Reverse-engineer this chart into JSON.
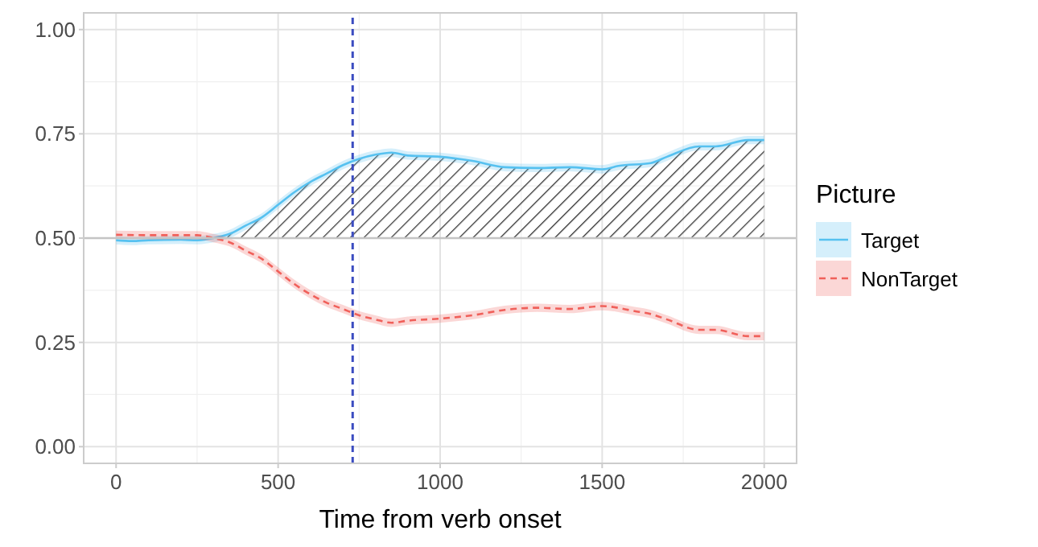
{
  "chart_data": {
    "type": "line",
    "xlabel": "Time from verb onset",
    "legend_title": "Picture",
    "xlim": [
      -100,
      2100
    ],
    "ylim": [
      -0.04,
      1.04
    ],
    "xticks": [
      0,
      500,
      1000,
      1500,
      2000
    ],
    "yticks": [
      {
        "value": 0,
        "label": "0.00"
      },
      {
        "value": 0.25,
        "label": "0.25"
      },
      {
        "value": 0.5,
        "label": "0.50"
      },
      {
        "value": 0.75,
        "label": "0.75"
      },
      {
        "value": 1,
        "label": "1.00"
      }
    ],
    "grid": true,
    "legend": "right",
    "ref_lines": [
      {
        "axis": "x",
        "value": 730,
        "color": "#3b4cc0",
        "line_style": "dashed"
      },
      {
        "axis": "y",
        "value": 0.5,
        "color": "#c4c4c4",
        "line_style": "solid"
      }
    ],
    "series": [
      {
        "type": "area",
        "color": "#333333",
        "x": [
          330,
          350,
          400,
          450,
          500,
          550,
          600,
          650,
          700,
          750,
          800,
          850,
          900,
          1000,
          1100,
          1200,
          1300,
          1400,
          1500,
          1550,
          1650,
          1700,
          1800,
          1850,
          1950,
          2000
        ],
        "values": [
          0.5,
          0.51,
          0.53,
          0.55,
          0.58,
          0.61,
          0.635,
          0.655,
          0.675,
          0.69,
          0.7,
          0.705,
          0.698,
          0.695,
          0.685,
          0.67,
          0.668,
          0.67,
          0.665,
          0.673,
          0.68,
          0.695,
          0.72,
          0.72,
          0.735,
          0.735
        ]
      },
      {
        "name": "Target",
        "color": "#56c1f0",
        "line_style": "solid",
        "x": [
          0,
          50,
          100,
          200,
          250,
          300,
          350,
          400,
          450,
          500,
          550,
          600,
          650,
          700,
          750,
          800,
          850,
          900,
          1000,
          1100,
          1200,
          1300,
          1400,
          1500,
          1550,
          1650,
          1700,
          1800,
          1850,
          1950,
          2000
        ],
        "values": [
          0.495,
          0.493,
          0.495,
          0.496,
          0.495,
          0.5,
          0.51,
          0.53,
          0.55,
          0.58,
          0.61,
          0.635,
          0.655,
          0.675,
          0.69,
          0.7,
          0.705,
          0.698,
          0.695,
          0.685,
          0.67,
          0.668,
          0.67,
          0.665,
          0.673,
          0.68,
          0.695,
          0.72,
          0.72,
          0.735,
          0.735
        ],
        "lower": [
          0.485,
          0.483,
          0.485,
          0.486,
          0.485,
          0.49,
          0.5,
          0.52,
          0.54,
          0.57,
          0.6,
          0.625,
          0.645,
          0.665,
          0.68,
          0.69,
          0.695,
          0.688,
          0.685,
          0.675,
          0.66,
          0.658,
          0.66,
          0.655,
          0.663,
          0.67,
          0.685,
          0.71,
          0.71,
          0.725,
          0.725
        ],
        "upper": [
          0.505,
          0.503,
          0.505,
          0.506,
          0.505,
          0.51,
          0.52,
          0.54,
          0.56,
          0.59,
          0.62,
          0.645,
          0.665,
          0.685,
          0.7,
          0.71,
          0.715,
          0.708,
          0.705,
          0.695,
          0.68,
          0.678,
          0.68,
          0.675,
          0.683,
          0.69,
          0.705,
          0.73,
          0.73,
          0.745,
          0.745
        ]
      },
      {
        "name": "NonTarget",
        "color": "#f0605a",
        "line_style": "dashed",
        "x": [
          0,
          100,
          250,
          300,
          350,
          400,
          450,
          500,
          550,
          600,
          650,
          700,
          750,
          800,
          850,
          900,
          1000,
          1100,
          1200,
          1300,
          1400,
          1500,
          1600,
          1650,
          1700,
          1800,
          1850,
          1950,
          2000
        ],
        "values": [
          0.508,
          0.507,
          0.507,
          0.5,
          0.49,
          0.47,
          0.45,
          0.42,
          0.39,
          0.365,
          0.345,
          0.33,
          0.315,
          0.305,
          0.297,
          0.302,
          0.307,
          0.315,
          0.328,
          0.333,
          0.33,
          0.337,
          0.325,
          0.318,
          0.305,
          0.28,
          0.28,
          0.265,
          0.265
        ],
        "lower": [
          0.498,
          0.497,
          0.497,
          0.49,
          0.48,
          0.46,
          0.44,
          0.41,
          0.38,
          0.355,
          0.335,
          0.32,
          0.305,
          0.295,
          0.287,
          0.292,
          0.297,
          0.305,
          0.318,
          0.323,
          0.32,
          0.327,
          0.315,
          0.308,
          0.295,
          0.27,
          0.27,
          0.255,
          0.255
        ],
        "upper": [
          0.518,
          0.517,
          0.517,
          0.51,
          0.5,
          0.48,
          0.46,
          0.43,
          0.4,
          0.375,
          0.355,
          0.34,
          0.325,
          0.315,
          0.307,
          0.312,
          0.317,
          0.325,
          0.338,
          0.343,
          0.34,
          0.347,
          0.335,
          0.328,
          0.315,
          0.29,
          0.29,
          0.275,
          0.275
        ]
      }
    ]
  }
}
